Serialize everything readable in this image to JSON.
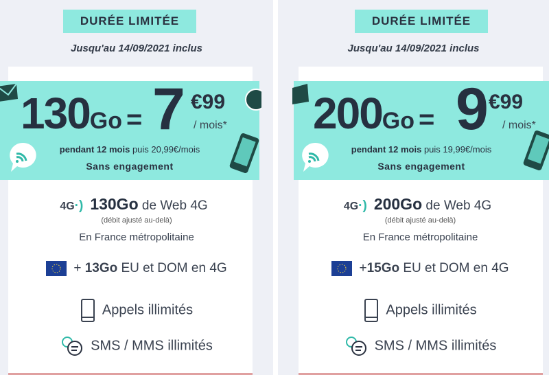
{
  "offers": [
    {
      "badge": "DURÉE LIMITÉE",
      "until": "Jusqu'au 14/09/2021 inclus",
      "data": "130",
      "unit": "Go",
      "equals": "=",
      "price_int": "7",
      "price_cents": "€99",
      "per": "/ mois*",
      "duration_bold": "pendant 12 mois",
      "duration_rest": " puis 20,99€/mois",
      "commitment": "Sans engagement",
      "web_prefix": "4G",
      "web_amount": "130Go",
      "web_suffix": " de Web 4G",
      "web_note": "(débit ajusté au-delà)",
      "web_zone": "En France métropolitaine",
      "eu_prefix": "+ ",
      "eu_amount": "13Go",
      "eu_suffix": " EU et DOM en 4G",
      "calls": "Appels illimités",
      "sms": "SMS / MMS illimités"
    },
    {
      "badge": "DURÉE LIMITÉE",
      "until": "Jusqu'au 14/09/2021 inclus",
      "data": "200",
      "unit": "Go",
      "equals": "=",
      "price_int": "9",
      "price_cents": "€99",
      "per": "/ mois*",
      "duration_bold": "pendant 12 mois",
      "duration_rest": " puis 19,99€/mois",
      "commitment": "Sans engagement",
      "web_prefix": "4G",
      "web_amount": "200Go",
      "web_suffix": " de Web 4G",
      "web_note": "(débit ajusté au-delà)",
      "web_zone": "En France métropolitaine",
      "eu_prefix": "+",
      "eu_amount": "15Go",
      "eu_suffix": " EU et DOM en 4G",
      "calls": "Appels illimités",
      "sms": "SMS / MMS illimités"
    }
  ],
  "colors": {
    "accent": "#8ee9df",
    "text": "#263040",
    "background": "#eef0f6"
  }
}
